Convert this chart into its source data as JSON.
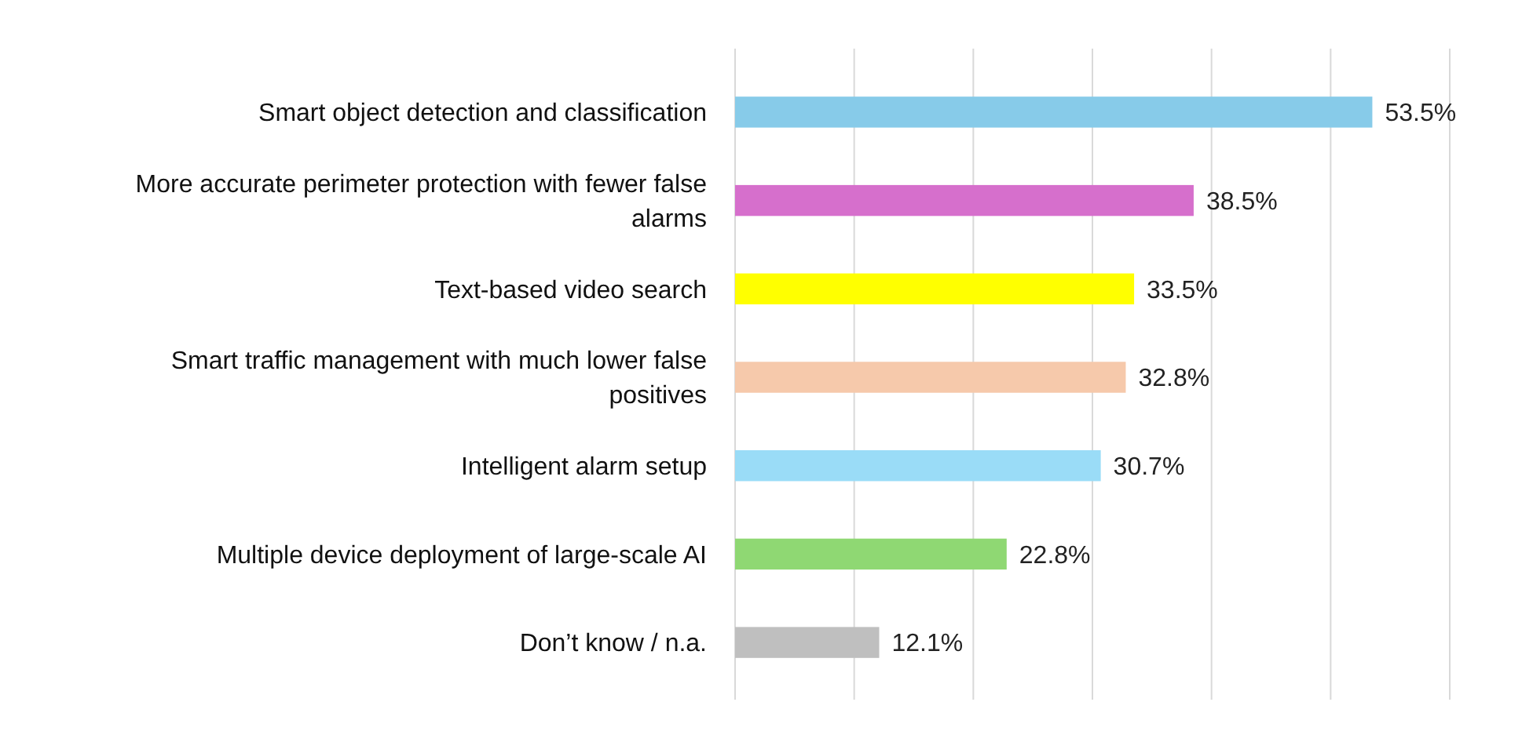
{
  "chart_data": {
    "type": "bar",
    "orientation": "horizontal",
    "categories": [
      "Smart object detection and classification",
      "More accurate perimeter protection with fewer false alarms",
      "Text-based video search",
      "Smart traffic management with much lower false positives",
      "Intelligent alarm setup",
      "Multiple device deployment of large-scale AI",
      "Don’t know / n.a."
    ],
    "values": [
      53.5,
      38.5,
      33.5,
      32.8,
      30.7,
      22.8,
      12.1
    ],
    "colors": [
      "#87cbe9",
      "#d66fcc",
      "#ffff00",
      "#f6c9ab",
      "#9adcf7",
      "#8fd873",
      "#bfbfbf"
    ],
    "value_labels": [
      "53.5%",
      "38.5%",
      "33.5%",
      "32.8%",
      "30.7%",
      "22.8%",
      "12.1%"
    ],
    "xlim": [
      0,
      60
    ],
    "xticks": [
      {
        "value": 0,
        "label": null
      },
      {
        "value": 10,
        "label": null
      },
      {
        "value": 20,
        "label": null
      },
      {
        "value": 30,
        "label": null
      },
      {
        "value": 40,
        "label": null
      },
      {
        "value": 50,
        "label": null
      },
      {
        "value": 60,
        "label": null
      }
    ],
    "grid": "x",
    "tick_labels": "y"
  }
}
